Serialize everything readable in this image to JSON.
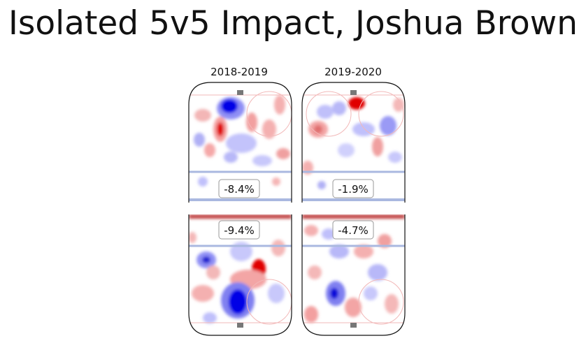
{
  "title": "Isolated 5v5 Impact, Joshua Brown",
  "chart_data": {
    "type": "heatmap",
    "title": "Isolated 5v5 Impact, Joshua Brown",
    "seasons": [
      "2018-2019",
      "2019-2020"
    ],
    "panels": [
      {
        "season": "2018-2019",
        "zone": "offense",
        "label": "-8.4%",
        "value": -8.4
      },
      {
        "season": "2019-2020",
        "zone": "offense",
        "label": "-1.9%",
        "value": -1.9
      },
      {
        "season": "2018-2019",
        "zone": "defense",
        "label": "-9.4%",
        "value": -9.4
      },
      {
        "season": "2019-2020",
        "zone": "defense",
        "label": "-4.7%",
        "value": -4.7
      }
    ],
    "colors": {
      "positive": "#e8000b",
      "negative": "#0000e0",
      "line": "#aab8e0"
    }
  }
}
